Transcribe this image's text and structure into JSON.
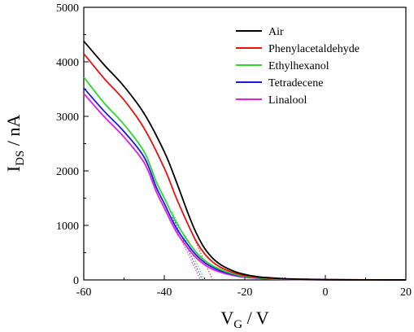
{
  "chart_data": {
    "type": "line",
    "xlabel": "V",
    "xlabel_sub": "G",
    "xlabel_unit": " / V",
    "ylabel": "I",
    "ylabel_sub": "DS",
    "ylabel_unit": " / nA",
    "xlim": [
      -60,
      20
    ],
    "ylim": [
      0,
      5000
    ],
    "x_ticks": [
      -60,
      -40,
      -20,
      0,
      20
    ],
    "y_ticks": [
      0,
      1000,
      2000,
      3000,
      4000,
      5000
    ],
    "legend_position": "top-right",
    "grid": false,
    "series": [
      {
        "name": "Air",
        "color": "#000000",
        "x": [
          -60,
          -55,
          -50,
          -45,
          -40,
          -37,
          -34,
          -32,
          -30,
          -28,
          -26,
          -24,
          -22,
          -20,
          -17,
          -14,
          -10,
          -5,
          0,
          5,
          10,
          15,
          20
        ],
        "y": [
          4380,
          3950,
          3550,
          3050,
          2350,
          1800,
          1200,
          850,
          580,
          400,
          280,
          200,
          140,
          100,
          60,
          40,
          22,
          12,
          6,
          3,
          2,
          1,
          1
        ]
      },
      {
        "name": "Phenylacetaldehyde",
        "color": "#e8110f",
        "x": [
          -60,
          -55,
          -50,
          -45,
          -40,
          -37,
          -34,
          -32,
          -30,
          -28,
          -26,
          -24,
          -22,
          -20,
          -17,
          -14,
          -10,
          -5,
          0,
          5,
          10,
          15,
          20
        ],
        "y": [
          4150,
          3700,
          3300,
          2780,
          2050,
          1500,
          1000,
          700,
          480,
          330,
          230,
          165,
          115,
          80,
          50,
          32,
          18,
          10,
          5,
          3,
          2,
          1,
          1
        ]
      },
      {
        "name": "Ethylhexanol",
        "color": "#2bd92b",
        "x": [
          -60,
          -55,
          -50,
          -45,
          -42,
          -40,
          -37,
          -34,
          -32,
          -30,
          -28,
          -26,
          -24,
          -22,
          -20,
          -17,
          -14,
          -10,
          -5,
          0,
          5,
          10,
          15,
          20
        ],
        "y": [
          3720,
          3250,
          2850,
          2350,
          1800,
          1500,
          1050,
          700,
          500,
          360,
          260,
          190,
          135,
          95,
          65,
          40,
          25,
          14,
          7,
          4,
          2,
          1,
          1,
          1
        ]
      },
      {
        "name": "Tetradecene",
        "color": "#1a1ae6",
        "x": [
          -60,
          -55,
          -50,
          -45,
          -42,
          -40,
          -37,
          -34,
          -32,
          -30,
          -28,
          -26,
          -24,
          -22,
          -20,
          -17,
          -14,
          -10,
          -5,
          0,
          5,
          10,
          15,
          20
        ],
        "y": [
          3520,
          3100,
          2720,
          2250,
          1700,
          1400,
          950,
          630,
          450,
          320,
          230,
          165,
          120,
          85,
          58,
          36,
          22,
          12,
          6,
          3,
          2,
          1,
          1,
          1
        ]
      },
      {
        "name": "Linalool",
        "color": "#e020e0",
        "x": [
          -60,
          -55,
          -50,
          -45,
          -42,
          -40,
          -37,
          -34,
          -32,
          -30,
          -28,
          -26,
          -24,
          -22,
          -20,
          -17,
          -14,
          -10,
          -5,
          0,
          5,
          10,
          15,
          20
        ],
        "y": [
          3420,
          3000,
          2620,
          2150,
          1620,
          1320,
          880,
          570,
          400,
          280,
          195,
          140,
          100,
          70,
          48,
          30,
          18,
          10,
          5,
          3,
          2,
          1,
          1,
          1
        ]
      }
    ],
    "extrapolation_lines": [
      {
        "color": "#e8110f",
        "x": [
          -37,
          -28
        ],
        "y": [
          1500,
          0
        ]
      },
      {
        "color": "#2bd92b",
        "x": [
          -38,
          -30
        ],
        "y": [
          1250,
          0
        ]
      },
      {
        "color": "#1a1ae6",
        "x": [
          -38,
          -30.5
        ],
        "y": [
          1150,
          0
        ]
      },
      {
        "color": "#e020e0",
        "x": [
          -38,
          -31
        ],
        "y": [
          1080,
          0
        ]
      }
    ]
  }
}
